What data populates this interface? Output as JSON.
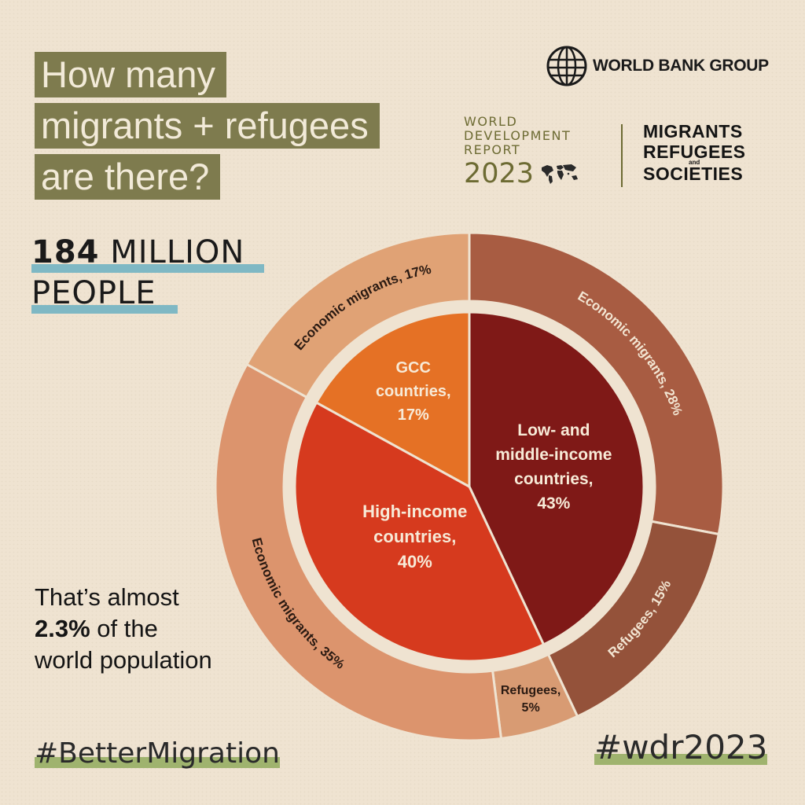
{
  "header": {
    "title_lines": [
      "How many",
      "migrants + refugees",
      "are there?"
    ]
  },
  "logo": {
    "text": "WORLD BANK GROUP",
    "icon": "globe-icon"
  },
  "report": {
    "line1": "WORLD",
    "line2": "DEVELOPMENT",
    "line3": "REPORT",
    "year": "2023",
    "map_icon": "world-map-icon",
    "theme_line1": "MIGRANTS",
    "theme_line2": "REFUGEES",
    "theme_and": "and",
    "theme_line3": "SOCIETIES"
  },
  "headline": {
    "number": "184",
    "unit": "MILLION",
    "unit2": "PEOPLE"
  },
  "note": {
    "line1": "That’s almost",
    "pct": "2.3%",
    "line2_rest": " of the",
    "line3": "world population"
  },
  "hashtags": {
    "left": "#BetterMigration",
    "right": "#wdr2023"
  },
  "colors": {
    "low_middle": "#7f1917",
    "high_income": "#d63a1e",
    "gcc": "#e57125",
    "outer_low_middle_economic": "#a85c42",
    "outer_low_middle_refugees": "#94523a",
    "outer_high_economic": "#dc946d",
    "outer_high_refugees": "#d89b73",
    "outer_gcc_economic": "#e0a275",
    "background": "#efe3d1"
  },
  "chart_data": {
    "type": "pie",
    "variant": "nested-donut",
    "inner": [
      {
        "name": "Low- and middle-income countries",
        "value": 43,
        "label_lines": [
          "Low- and",
          "middle-income",
          "countries,",
          "43%"
        ]
      },
      {
        "name": "High-income countries",
        "value": 40,
        "label_lines": [
          "High-income",
          "countries,",
          "40%"
        ]
      },
      {
        "name": "GCC countries",
        "value": 17,
        "label_lines": [
          "GCC",
          "countries,",
          "17%"
        ]
      }
    ],
    "outer": [
      {
        "group": "Low- and middle-income countries",
        "name": "Economic migrants",
        "value": 28,
        "label": "Economic migrants, 28%"
      },
      {
        "group": "Low- and middle-income countries",
        "name": "Refugees",
        "value": 15,
        "label": "Refugees, 15%"
      },
      {
        "group": "High-income countries",
        "name": "Refugees",
        "value": 5,
        "label_lines": [
          "Refugees,",
          "5%"
        ]
      },
      {
        "group": "High-income countries",
        "name": "Economic migrants",
        "value": 35,
        "label": "Economic migrants, 35%"
      },
      {
        "group": "GCC countries",
        "name": "Economic migrants",
        "value": 17,
        "label": "Economic migrants, 17%"
      }
    ]
  }
}
